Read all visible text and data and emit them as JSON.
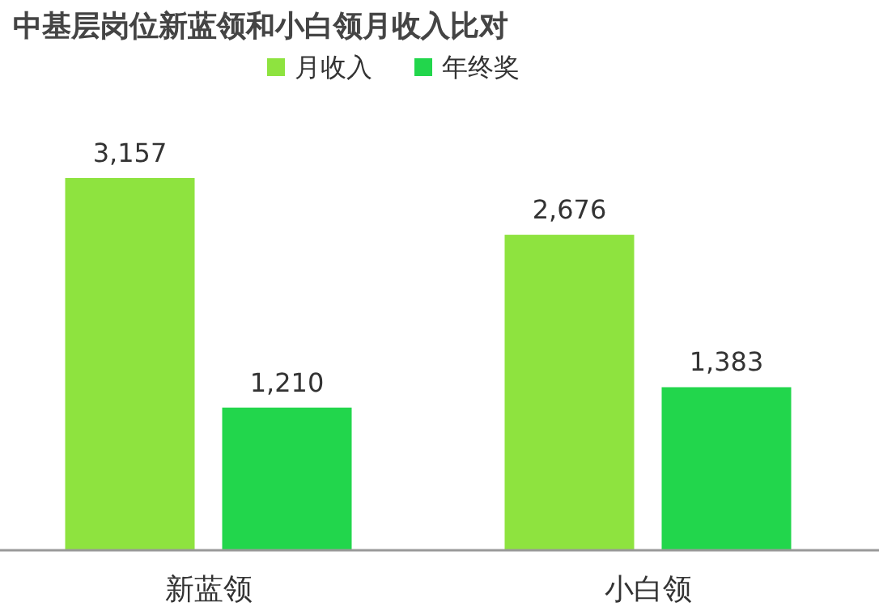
{
  "chart_data": {
    "type": "bar",
    "title": "中基层岗位新蓝领和小白领月收入比对",
    "categories": [
      "新蓝领",
      "小白领"
    ],
    "series": [
      {
        "name": "月收入",
        "color": "#8ee33f",
        "values": [
          3157,
          2676
        ],
        "value_labels": [
          "3,157",
          "2,676"
        ]
      },
      {
        "name": "年终奖",
        "color": "#22d64c",
        "values": [
          1210,
          1383
        ],
        "value_labels": [
          "1,210",
          "1,383"
        ]
      }
    ],
    "legend": "top"
  }
}
